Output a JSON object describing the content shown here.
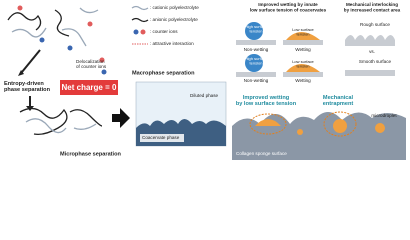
{
  "left": {
    "entropy_label": [
      "Entropy-driven",
      "phase separation"
    ],
    "delocalization_label": [
      "Delocalization",
      "of counter ions"
    ],
    "net_charge": "Net charge = 0",
    "microphase_label": "Microphase separation"
  },
  "legend": [
    ": cationic polyelectrolyte",
    ": anionic polyelectrolyte",
    ": counter ions",
    ": attractive interaction"
  ],
  "middle": {
    "macrophase_label": "Macrophase separation",
    "diluted_phase": "Diluted phase",
    "coacervate_phase": "Coacervate phase"
  },
  "wetting": {
    "title": [
      "Improved wetting by innate",
      "low surface tension of coacervates"
    ],
    "high_tension": [
      "High surface",
      "tension"
    ],
    "low_tension": [
      "Low surface",
      "tension"
    ],
    "non_wetting": "Non-wetting",
    "wetting": "Wetting",
    "high_tension_2": [
      "High surface",
      "tension"
    ],
    "low_tension_2": [
      "Low surface",
      "tension"
    ],
    "non_wetting_2": "Non-wetting",
    "wetting_2": "Wetting"
  },
  "interlocking": {
    "title": [
      "Mechanical interlocking",
      "by increased contact area"
    ],
    "rough": "Rough surface",
    "vs": "vs.",
    "smooth": "Smooth surface"
  },
  "sponge": {
    "improved_wetting": [
      "Improved wetting",
      "by low surface tension"
    ],
    "entrapment": [
      "Mechanical",
      "entrapment"
    ],
    "microdroplet": "microdroplet",
    "surface": "Collagen sponge surface"
  }
}
